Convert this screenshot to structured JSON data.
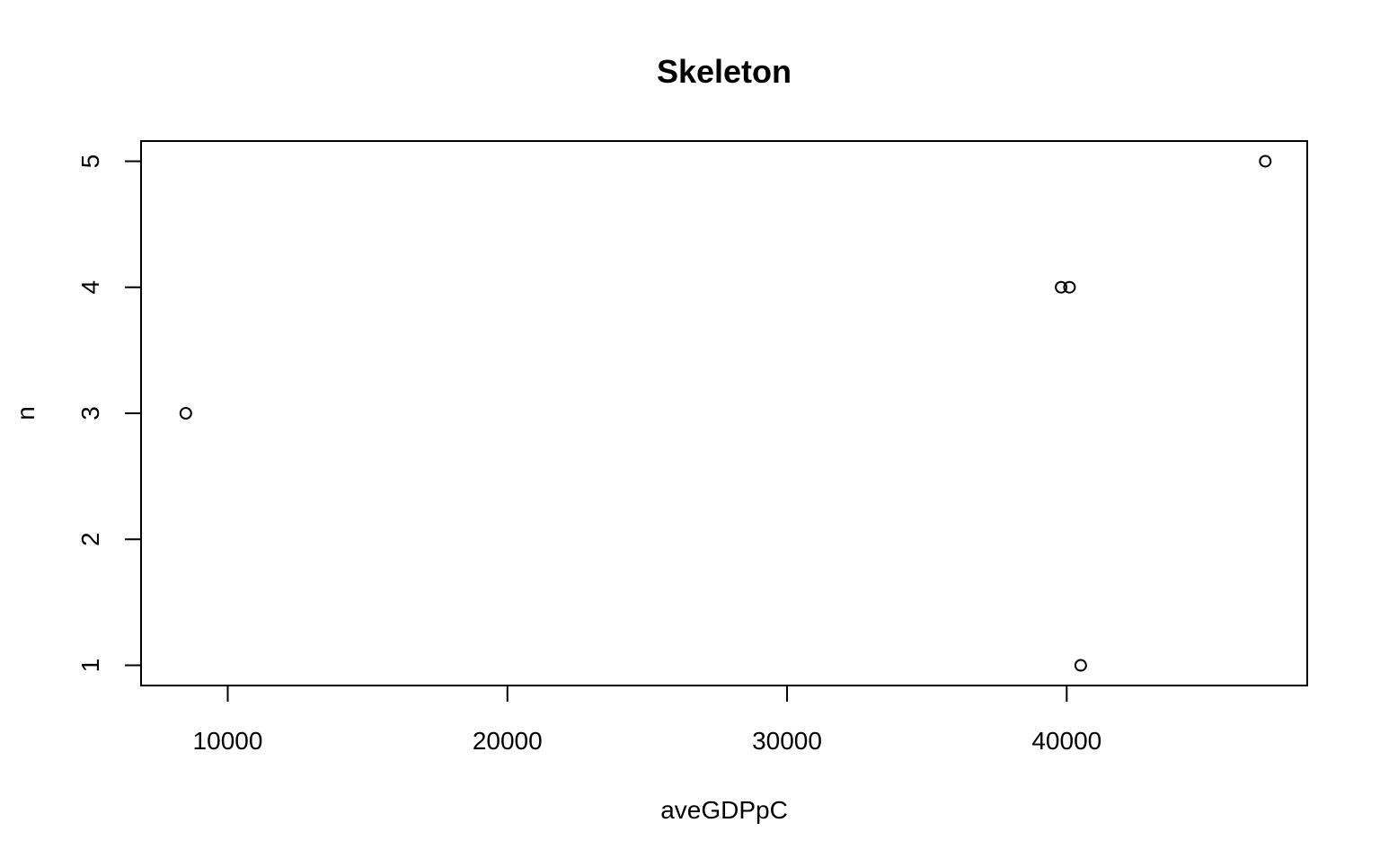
{
  "chart_data": {
    "type": "scatter",
    "title": "Skeleton",
    "xlabel": "aveGDPpC",
    "ylabel": "n",
    "xlim": [
      6900,
      48600
    ],
    "ylim": [
      0.84,
      5.16
    ],
    "x_ticks": [
      10000,
      20000,
      30000,
      40000
    ],
    "x_tick_labels": [
      "10000",
      "20000",
      "30000",
      "40000"
    ],
    "y_ticks": [
      1,
      2,
      3,
      4,
      5
    ],
    "y_tick_labels": [
      "1",
      "2",
      "3",
      "4",
      "5"
    ],
    "grid": false,
    "marker": "open-circle",
    "points": [
      {
        "x": 8500,
        "y": 3
      },
      {
        "x": 39800,
        "y": 4
      },
      {
        "x": 40100,
        "y": 4
      },
      {
        "x": 40500,
        "y": 1
      },
      {
        "x": 47100,
        "y": 5
      }
    ]
  },
  "colors": {
    "background": "#ffffff",
    "foreground": "#000000"
  }
}
